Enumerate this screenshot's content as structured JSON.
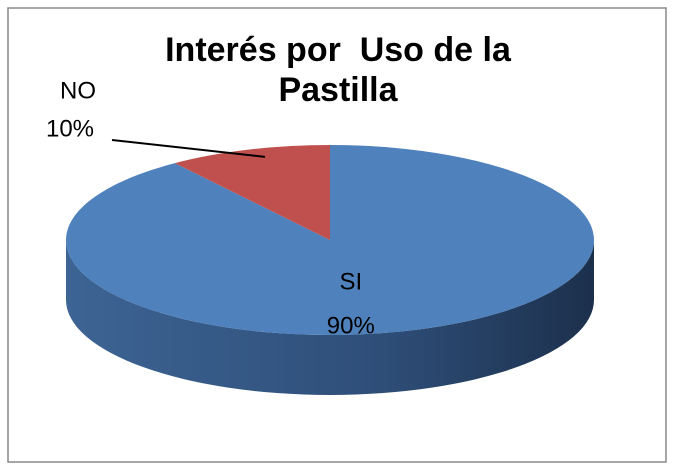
{
  "chart_data": {
    "type": "pie3d",
    "title": "Interés por  Uso de la Pastilla",
    "categories": [
      "SI",
      "NO"
    ],
    "values": [
      90,
      10
    ],
    "value_labels": [
      "90%",
      "10%"
    ],
    "colors": [
      "#4f81bd",
      "#c0504d"
    ]
  }
}
